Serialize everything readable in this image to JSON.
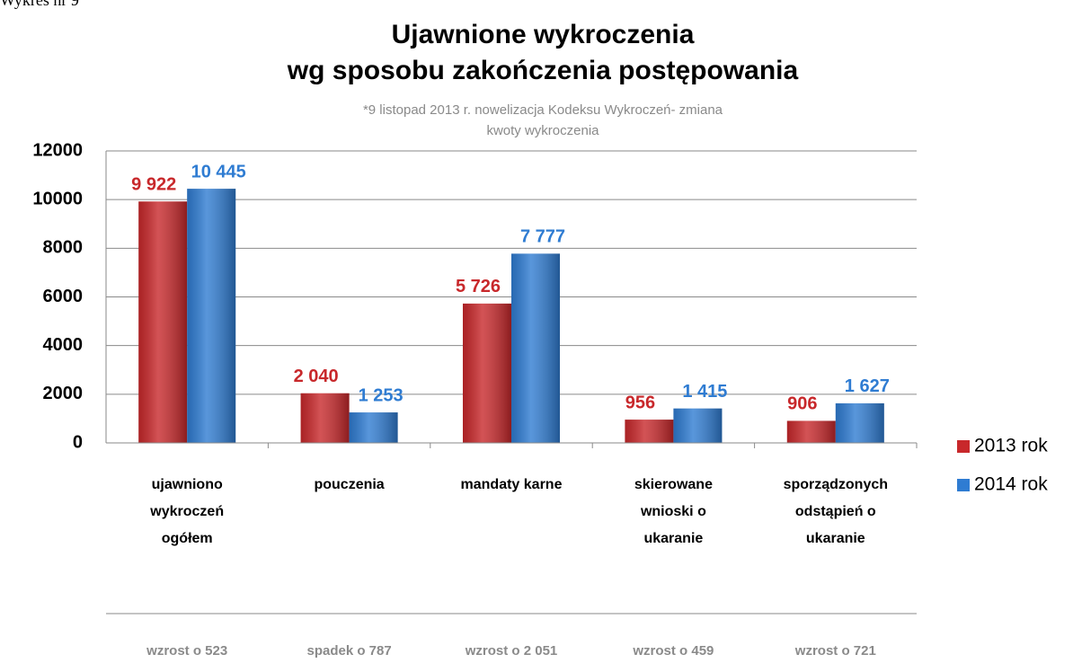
{
  "chart_data": {
    "type": "bar",
    "caption": "Wykres nr 9",
    "title": [
      "Ujawnione wykroczenia",
      "wg sposobu zakończenia postępowania"
    ],
    "subtitle": [
      "*9 listopad 2013 r. nowelizacja Kodeksu Wykroczeń- zmiana",
      "kwoty wykroczenia"
    ],
    "categories": [
      "ujawniono\nwykroczeń\nogółem",
      "pouczenia",
      "mandaty karne",
      "skierowane\nwnioski o\nukaranie",
      "sporządzonych\nodstąpień o\nukaranie"
    ],
    "series": [
      {
        "name": "2013 rok",
        "color": "#c8282b",
        "values": [
          9922,
          2040,
          5726,
          956,
          906
        ],
        "value_labels": [
          "9 922",
          "2 040",
          "5 726",
          "956",
          "906"
        ]
      },
      {
        "name": "2014 rok",
        "color": "#2f7cd2",
        "values": [
          10445,
          1253,
          7777,
          1415,
          1627
        ],
        "value_labels": [
          "10 445",
          "1 253",
          "7 777",
          "1 415",
          "1 627"
        ]
      }
    ],
    "annotations": [
      "wzrost o 523",
      "spadek o 787",
      "wzrost o 2 051",
      "wzrost o 459",
      "wzrost o 721"
    ],
    "ylim": [
      0,
      12000
    ],
    "yticks": [
      0,
      2000,
      4000,
      6000,
      8000,
      10000,
      12000
    ],
    "grid": true,
    "legend": "right"
  }
}
